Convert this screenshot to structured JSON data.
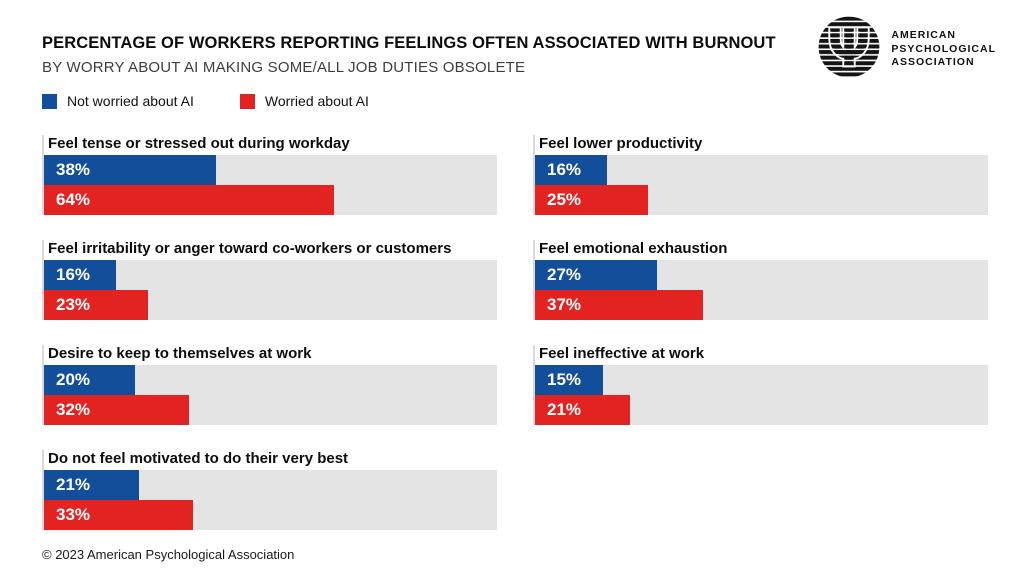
{
  "header": {
    "title": "PERCENTAGE OF WORKERS REPORTING FEELINGS OFTEN ASSOCIATED WITH BURNOUT",
    "subtitle": "BY WORRY ABOUT AI MAKING SOME/ALL JOB DUTIES OBSOLETE"
  },
  "logo": {
    "icon": "psi-circle-icon",
    "org_line1": "AMERICAN",
    "org_line2": "PSYCHOLOGICAL",
    "org_line3": "ASSOCIATION"
  },
  "legend": {
    "items": [
      {
        "label": "Not worried about AI",
        "color": "#134e9b"
      },
      {
        "label": "Worried about AI",
        "color": "#e32322"
      }
    ]
  },
  "chart_data": {
    "type": "bar",
    "orientation": "horizontal",
    "title": "PERCENTAGE OF WORKERS REPORTING FEELINGS OFTEN ASSOCIATED WITH BURNOUT",
    "subtitle": "BY WORRY ABOUT AI MAKING SOME/ALL JOB DUTIES OBSOLETE",
    "xlim": [
      0,
      100
    ],
    "grid": "off",
    "legend_position": "top-left",
    "track_color": "#e4e4e4",
    "series": [
      {
        "name": "Not worried about AI",
        "color": "#134e9b"
      },
      {
        "name": "Worried about AI",
        "color": "#e32322"
      }
    ],
    "groups": [
      {
        "label": "Feel tense or stressed out during workday",
        "values": [
          38,
          64
        ],
        "value_labels": [
          "38%",
          "64%"
        ]
      },
      {
        "label": "Feel irritability or anger toward co-workers or customers",
        "values": [
          16,
          23
        ],
        "value_labels": [
          "16%",
          "23%"
        ]
      },
      {
        "label": "Desire to keep to themselves at work",
        "values": [
          20,
          32
        ],
        "value_labels": [
          "20%",
          "32%"
        ]
      },
      {
        "label": "Do not feel motivated to do their very best",
        "values": [
          21,
          33
        ],
        "value_labels": [
          "21%",
          "33%"
        ]
      },
      {
        "label": "Feel lower productivity",
        "values": [
          16,
          25
        ],
        "value_labels": [
          "16%",
          "25%"
        ]
      },
      {
        "label": "Feel emotional exhaustion",
        "values": [
          27,
          37
        ],
        "value_labels": [
          "27%",
          "37%"
        ]
      },
      {
        "label": "Feel ineffective at work",
        "values": [
          15,
          21
        ],
        "value_labels": [
          "15%",
          "21%"
        ]
      }
    ]
  },
  "footer": {
    "copyright": "© 2023 American Psychological Association"
  }
}
